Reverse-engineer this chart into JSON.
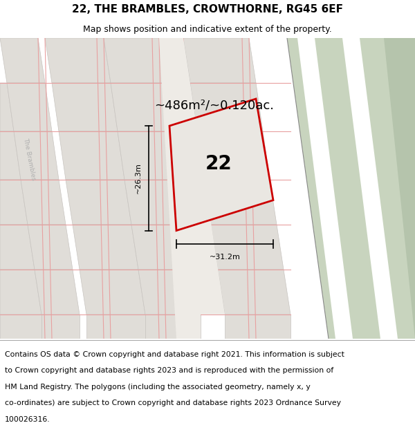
{
  "title": "22, THE BRAMBLES, CROWTHORNE, RG45 6EF",
  "subtitle": "Map shows position and indicative extent of the property.",
  "area_text": "~486m²/~0.120ac.",
  "property_label": "22",
  "dim_vertical": "~26.3m",
  "dim_horizontal": "~31.2m",
  "road_label": "The Brambles",
  "footer_lines": [
    "Contains OS data © Crown copyright and database right 2021. This information is subject",
    "to Crown copyright and database rights 2023 and is reproduced with the permission of",
    "HM Land Registry. The polygons (including the associated geometry, namely x, y",
    "co-ordinates) are subject to Crown copyright and database rights 2023 Ordnance Survey",
    "100026316."
  ],
  "map_bg": "#eeebe6",
  "block_color": "#e0ddd8",
  "block_outline": "#c8c4c0",
  "grid_color": "#e8a0a0",
  "road_fill": "#c8d4be",
  "road_dark": "#b5c4ac",
  "property_fill": "#eae7e2",
  "property_edge": "#cc0000",
  "road_label_color": "#b0b0b0",
  "title_fontsize": 11,
  "subtitle_fontsize": 9,
  "footer_fontsize": 7.8
}
